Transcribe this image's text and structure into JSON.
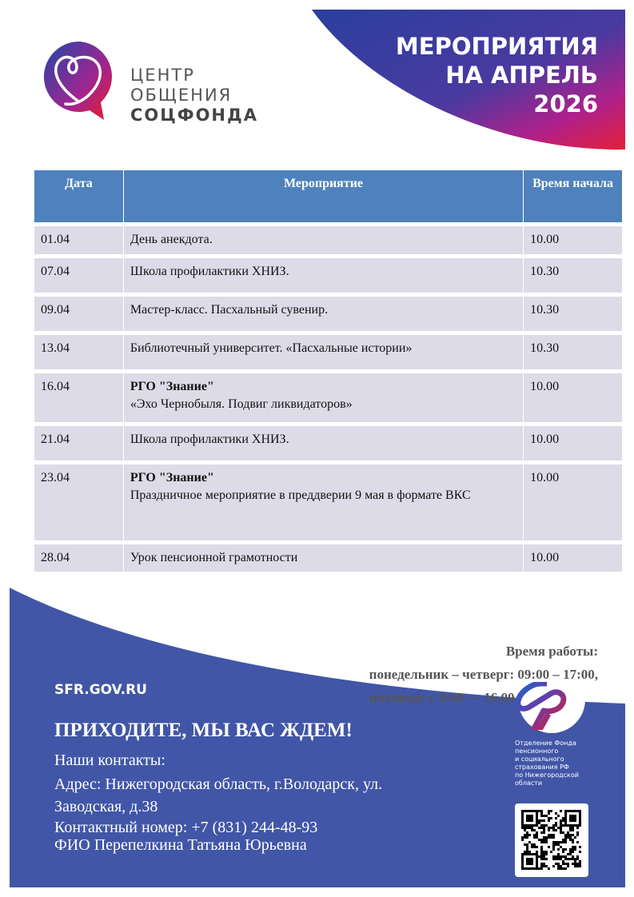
{
  "header": {
    "title_lines": [
      "МЕРОПРИЯТИЯ",
      "НА АПРЕЛЬ",
      "2026"
    ]
  },
  "logo": {
    "lines": [
      "ЦЕНТР",
      "ОБЩЕНИЯ",
      "СОЦФОНДА"
    ]
  },
  "table": {
    "columns": [
      "Дата",
      "Мероприятие",
      "Время начала"
    ],
    "rows": [
      {
        "date": "01.04",
        "title": "",
        "event": "День анекдота.",
        "time": "10.00"
      },
      {
        "date": "07.04",
        "title": "",
        "event": "Школа профилактики ХНИЗ.",
        "time": "10.30"
      },
      {
        "date": "09.04",
        "title": "",
        "event": "Мастер-класс. Пасхальный сувенир.",
        "time": "10.30"
      },
      {
        "date": "13.04",
        "title": "",
        "event": "Библиотечный университет. «Пасхальные истории»",
        "time": "10.30"
      },
      {
        "date": "16.04",
        "title": "РГО \"Знание\"",
        "event": "«Эхо Чернобыля. Подвиг ликвидаторов»",
        "time": "10.00"
      },
      {
        "date": "21.04",
        "title": "",
        "event": "Школа профилактики ХНИЗ.",
        "time": "10.00"
      },
      {
        "date": "23.04",
        "title": "РГО \"Знание\"",
        "event": "Праздничное мероприятие в преддверии 9 мая в формате ВКС",
        "time": "10.00"
      },
      {
        "date": "28.04",
        "title": "",
        "event": "Урок пенсионной грамотности",
        "time": "10.00"
      }
    ]
  },
  "hours": {
    "title": "Время работы:",
    "line1": "понедельник – четверг: 09:00 – 17:00,",
    "line2": "пятница: с 9:00 — 16.00"
  },
  "footer": {
    "site": "SFR.GOV.RU",
    "welcome": "ПРИХОДИТЕ, МЫ ВАС ЖДЕМ!",
    "contacts_label": "Наши контакты:",
    "address1": "Адрес: Нижегородская область, г.Володарск, ул.",
    "address2": "Заводская, д.38",
    "phone": "Контактный номер: +7 (831) 244-48-93",
    "person": "ФИО   Перепелкина Татьяна Юрьевна",
    "sfr_lines": [
      "Отделение Фонда",
      "пенсионного",
      "и социального",
      "страхования РФ",
      "по Нижегородской",
      "области"
    ]
  },
  "colors": {
    "footer_blue": "#4156a6",
    "table_header": "#4f81bd",
    "row_bg": "#dedbe8"
  }
}
